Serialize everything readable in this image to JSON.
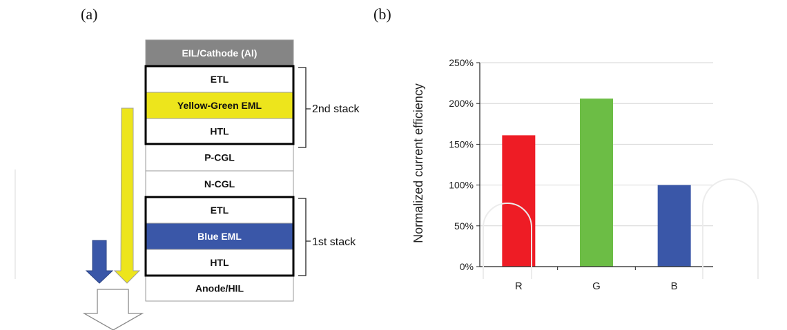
{
  "panels": {
    "a": "(a)",
    "b": "(b)"
  },
  "colors": {
    "cathode": "#858585",
    "yellow": "#ede51c",
    "blue": "#3a57a8",
    "border": "#9a9a9a",
    "bar_r": "#ee1c25",
    "bar_g": "#6cbd45",
    "bar_b": "#3a57a8"
  },
  "device": {
    "layers": [
      {
        "id": "cathode",
        "label": "EIL/Cathode (Al)",
        "style": "cathode"
      },
      {
        "id": "etl2",
        "label": "ETL",
        "style": "plain"
      },
      {
        "id": "yg-eml",
        "label": "Yellow-Green EML",
        "style": "yellow"
      },
      {
        "id": "htl2",
        "label": "HTL",
        "style": "plain"
      },
      {
        "id": "pcgl",
        "label": "P-CGL",
        "style": "plain"
      },
      {
        "id": "ncgl",
        "label": "N-CGL",
        "style": "plain"
      },
      {
        "id": "etl1",
        "label": "ETL",
        "style": "plain"
      },
      {
        "id": "blue-eml",
        "label": "Blue EML",
        "style": "blue"
      },
      {
        "id": "htl1",
        "label": "HTL",
        "style": "plain"
      },
      {
        "id": "anode",
        "label": "Anode/HIL",
        "style": "plain"
      }
    ],
    "stack2_label": "2nd stack",
    "stack1_label": "1st stack"
  },
  "chart_data": {
    "type": "bar",
    "categories": [
      "R",
      "G",
      "B"
    ],
    "values": [
      161,
      206,
      100
    ],
    "value_unit": "%",
    "colors": [
      "#ee1c25",
      "#6cbd45",
      "#3a57a8"
    ],
    "ylabel": "Normalized current efficiency",
    "xlabel": "",
    "ylim": [
      0,
      250
    ],
    "yticks": [
      0,
      50,
      100,
      150,
      200,
      250
    ],
    "ytick_labels": [
      "0%",
      "50%",
      "100%",
      "150%",
      "200%",
      "250%"
    ],
    "grid": true
  }
}
